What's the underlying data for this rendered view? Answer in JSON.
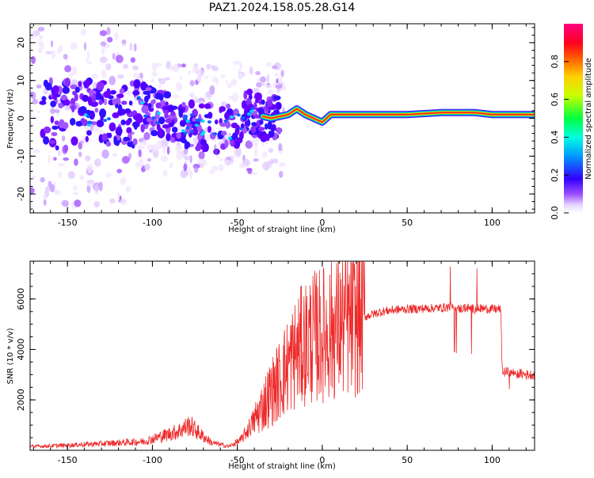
{
  "title": "PAZ1.2024.158.05.28.G14",
  "chart_data": [
    {
      "type": "heatmap",
      "xlabel": "Height of straight line (km)",
      "ylabel": "Frequency (Hz)",
      "xlim": [
        -172,
        125
      ],
      "ylim": [
        -25,
        25
      ],
      "xticks": [
        "-150",
        "-100",
        "-50",
        "0",
        "50",
        "100"
      ],
      "yticks": [
        "-20",
        "-10",
        "0",
        "10",
        "20"
      ],
      "colorbar": {
        "label": "Normalized spectral amplitude",
        "range": [
          0,
          1
        ],
        "ticks": [
          "0.0",
          "0.2",
          "0.4",
          "0.6",
          "0.8"
        ],
        "colormap": "hsv"
      },
      "description_points": {
        "noise_x_range": [
          -172,
          -25
        ],
        "ridge": [
          {
            "x": -110,
            "y": 4
          },
          {
            "x": -100,
            "y": 2
          },
          {
            "x": -90,
            "y": 0
          },
          {
            "x": -80,
            "y": -1.5
          },
          {
            "x": -70,
            "y": -2.5
          },
          {
            "x": -60,
            "y": -3
          },
          {
            "x": -50,
            "y": -2
          },
          {
            "x": -45,
            "y": 3
          },
          {
            "x": -40,
            "y": 1
          },
          {
            "x": -30,
            "y": 0
          },
          {
            "x": -20,
            "y": 1
          },
          {
            "x": -15,
            "y": 2.5
          },
          {
            "x": -10,
            "y": 1
          },
          {
            "x": -5,
            "y": 0
          },
          {
            "x": 0,
            "y": -1
          },
          {
            "x": 5,
            "y": 1
          },
          {
            "x": 50,
            "y": 1
          },
          {
            "x": 70,
            "y": 1.5
          },
          {
            "x": 90,
            "y": 1.5
          },
          {
            "x": 100,
            "y": 1
          },
          {
            "x": 125,
            "y": 1
          }
        ]
      }
    },
    {
      "type": "line",
      "xlabel": "Height of straight line (km)",
      "ylabel": "SNR (10 * v/v)",
      "xlim": [
        -172,
        125
      ],
      "ylim": [
        0,
        7500
      ],
      "xticks": [
        "-150",
        "-100",
        "-50",
        "0",
        "50",
        "100"
      ],
      "yticks": [
        "2000",
        "4000",
        "6000"
      ],
      "series": [
        {
          "color": "#ee2a2a",
          "x": [
            -172,
            -150,
            -125,
            -105,
            -95,
            -85,
            -78,
            -72,
            -65,
            -55,
            -48,
            -40,
            -32,
            -25,
            -20,
            -15,
            -8,
            0,
            10,
            20,
            25,
            30,
            35,
            40,
            45,
            50,
            60,
            70,
            78,
            80,
            85,
            90,
            95,
            100,
            105,
            106,
            110,
            115,
            120,
            125
          ],
          "y": [
            150,
            200,
            280,
            350,
            550,
            750,
            1000,
            650,
            300,
            150,
            400,
            1200,
            2100,
            2800,
            3400,
            3900,
            4400,
            4600,
            4900,
            5100,
            5300,
            5400,
            5500,
            5550,
            5580,
            5600,
            5620,
            5650,
            5700,
            5600,
            5650,
            5600,
            5620,
            5600,
            5600,
            3100,
            3100,
            3050,
            3000,
            3000
          ]
        }
      ]
    }
  ]
}
